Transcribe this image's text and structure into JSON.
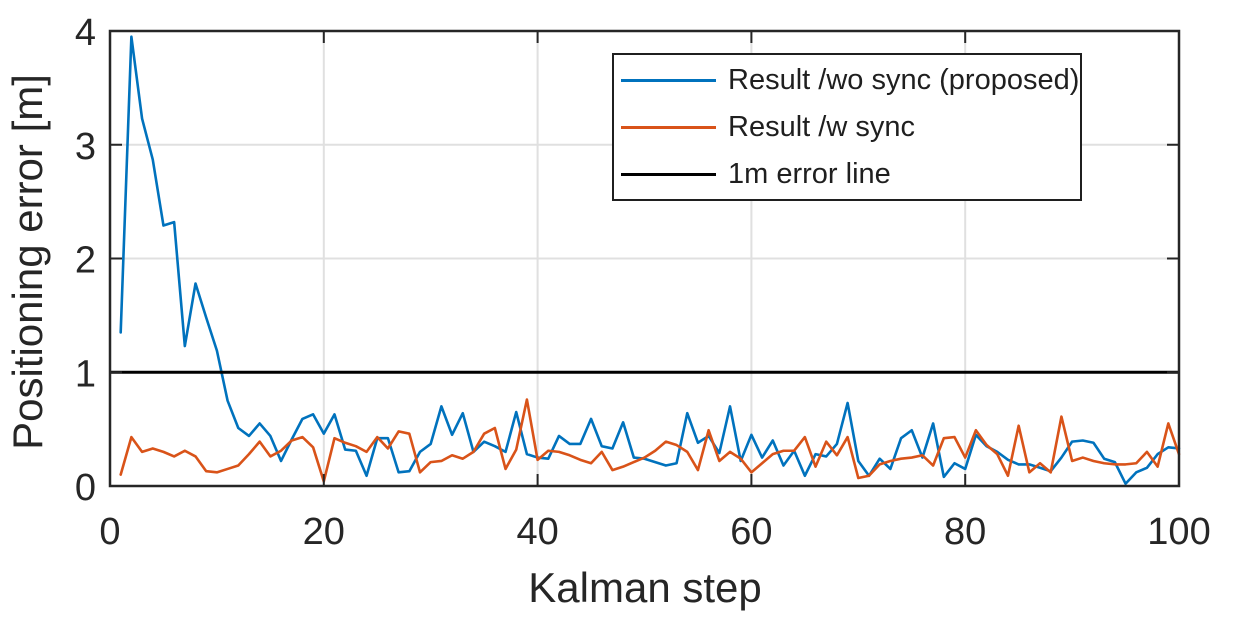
{
  "figure": {
    "background_color": "#ffffff",
    "axis_color": "#262626",
    "grid_color": "#e0e0e0",
    "tick_label_color": "#262626"
  },
  "chart_data": {
    "type": "line",
    "title": "",
    "xlabel": "Kalman step",
    "ylabel": "Positioning error [m]",
    "xlim": [
      0,
      100
    ],
    "ylim": [
      0,
      4
    ],
    "xticks": [
      0,
      20,
      40,
      60,
      80,
      100
    ],
    "yticks": [
      0,
      1,
      2,
      3,
      4
    ],
    "grid": true,
    "legend_position": "top-right",
    "x_range": [
      1,
      100
    ],
    "x_step": 1,
    "series": [
      {
        "name": "Result /wo sync (proposed)",
        "color": "#0072BD",
        "line_width": 2.6,
        "values": [
          1.35,
          3.95,
          3.23,
          2.87,
          2.29,
          2.32,
          1.23,
          1.78,
          1.48,
          1.19,
          0.75,
          0.51,
          0.44,
          0.55,
          0.44,
          0.22,
          0.41,
          0.59,
          0.63,
          0.46,
          0.63,
          0.32,
          0.31,
          0.09,
          0.42,
          0.42,
          0.12,
          0.13,
          0.3,
          0.37,
          0.7,
          0.45,
          0.64,
          0.3,
          0.39,
          0.35,
          0.3,
          0.65,
          0.28,
          0.25,
          0.24,
          0.44,
          0.37,
          0.37,
          0.59,
          0.35,
          0.33,
          0.56,
          0.25,
          0.24,
          0.21,
          0.18,
          0.2,
          0.64,
          0.38,
          0.44,
          0.29,
          0.7,
          0.22,
          0.45,
          0.25,
          0.4,
          0.18,
          0.31,
          0.09,
          0.28,
          0.26,
          0.37,
          0.73,
          0.22,
          0.09,
          0.24,
          0.15,
          0.42,
          0.49,
          0.25,
          0.55,
          0.08,
          0.2,
          0.15,
          0.45,
          0.35,
          0.3,
          0.23,
          0.19,
          0.19,
          0.16,
          0.13,
          0.25,
          0.39,
          0.4,
          0.38,
          0.24,
          0.21,
          0.02,
          0.12,
          0.16,
          0.28,
          0.34,
          0.33
        ]
      },
      {
        "name": "Result /w sync",
        "color": "#D95319",
        "line_width": 2.6,
        "values": [
          0.1,
          0.43,
          0.3,
          0.33,
          0.3,
          0.26,
          0.31,
          0.26,
          0.13,
          0.12,
          0.15,
          0.18,
          0.28,
          0.39,
          0.26,
          0.31,
          0.4,
          0.43,
          0.34,
          0.04,
          0.42,
          0.38,
          0.35,
          0.3,
          0.43,
          0.33,
          0.48,
          0.46,
          0.12,
          0.21,
          0.22,
          0.27,
          0.24,
          0.3,
          0.46,
          0.51,
          0.15,
          0.32,
          0.76,
          0.23,
          0.31,
          0.3,
          0.27,
          0.23,
          0.2,
          0.3,
          0.14,
          0.17,
          0.21,
          0.25,
          0.31,
          0.39,
          0.36,
          0.3,
          0.14,
          0.49,
          0.22,
          0.3,
          0.24,
          0.12,
          0.2,
          0.28,
          0.31,
          0.31,
          0.43,
          0.17,
          0.39,
          0.27,
          0.43,
          0.07,
          0.09,
          0.19,
          0.22,
          0.24,
          0.25,
          0.27,
          0.18,
          0.42,
          0.43,
          0.25,
          0.49,
          0.36,
          0.28,
          0.09,
          0.53,
          0.12,
          0.2,
          0.12,
          0.61,
          0.22,
          0.25,
          0.22,
          0.2,
          0.19,
          0.19,
          0.2,
          0.3,
          0.17,
          0.55,
          0.28
        ]
      },
      {
        "name": "1m error line",
        "color": "#000000",
        "line_width": 3,
        "constant": 1
      }
    ]
  }
}
